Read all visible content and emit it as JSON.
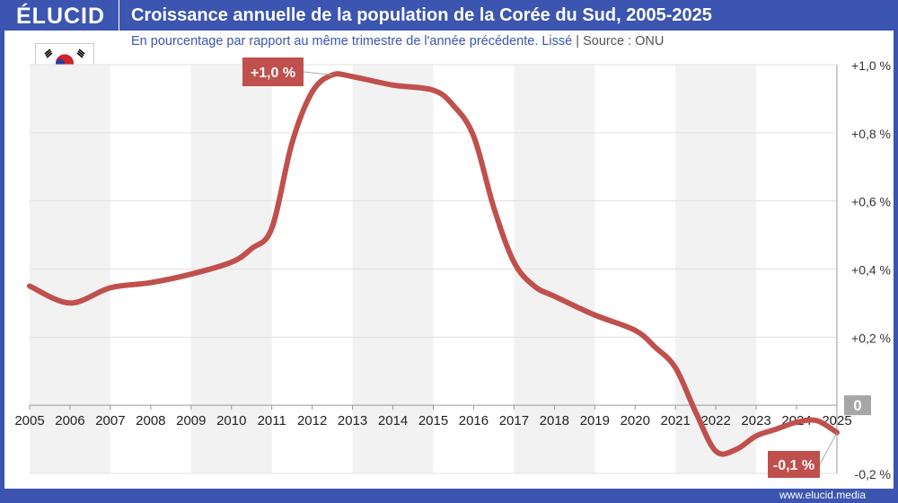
{
  "header": {
    "logo": "ÉLUCID",
    "title": "Croissance annuelle de la population de la Corée du Sud, 2005-2025"
  },
  "subtitle": {
    "text": "En pourcentage par rapport au même trimestre de l'année précédente. Lissé",
    "separator": "|",
    "source": "Source : ONU"
  },
  "footer": "www.elucid.media",
  "colors": {
    "brand": "#3b55b0",
    "line": "#c0504d",
    "label_bg": "#c0504d",
    "zero_badge": "#a6a6a6"
  },
  "chart_data": {
    "type": "line",
    "title": "Croissance annuelle de la population de la Corée du Sud, 2005-2025",
    "xlim": [
      2005,
      2025
    ],
    "ylim": [
      -0.2,
      1.0
    ],
    "x_ticks": [
      "2005",
      "2006",
      "2007",
      "2008",
      "2009",
      "2010",
      "2011",
      "2012",
      "2013",
      "2014",
      "2015",
      "2016",
      "2017",
      "2018",
      "2019",
      "2020",
      "2021",
      "2022",
      "2023",
      "2024",
      "2025"
    ],
    "y_ticks": [
      {
        "v": 1.0,
        "label": "+1,0 %"
      },
      {
        "v": 0.8,
        "label": "+0,8 %"
      },
      {
        "v": 0.6,
        "label": "+0,6 %"
      },
      {
        "v": 0.4,
        "label": "+0,4 %"
      },
      {
        "v": 0.2,
        "label": "+0,2 %"
      },
      {
        "v": 0,
        "label": "0"
      },
      {
        "v": -0.2,
        "label": "-0,2 %"
      }
    ],
    "grid": true,
    "series": [
      {
        "x": [
          2005,
          2006,
          2007,
          2008,
          2009,
          2010,
          2010.5,
          2011,
          2011.5,
          2012,
          2012.5,
          2013,
          2014,
          2015,
          2015.5,
          2016,
          2016.5,
          2017,
          2017.5,
          2018,
          2019,
          2020,
          2020.5,
          2021,
          2021.5,
          2022,
          2022.5,
          2023,
          2023.5,
          2024,
          2024.5,
          2025
        ],
        "y": [
          0.35,
          0.3,
          0.345,
          0.36,
          0.385,
          0.42,
          0.46,
          0.52,
          0.77,
          0.92,
          0.97,
          0.965,
          0.94,
          0.925,
          0.88,
          0.79,
          0.58,
          0.42,
          0.35,
          0.32,
          0.265,
          0.22,
          0.17,
          0.11,
          -0.02,
          -0.135,
          -0.13,
          -0.09,
          -0.07,
          -0.05,
          -0.045,
          -0.08
        ]
      }
    ],
    "annotations": [
      {
        "x": 2012.5,
        "y": 0.97,
        "label": "+1,0 %"
      },
      {
        "x": 2025,
        "y": -0.08,
        "label": "-0,1 %"
      }
    ]
  }
}
